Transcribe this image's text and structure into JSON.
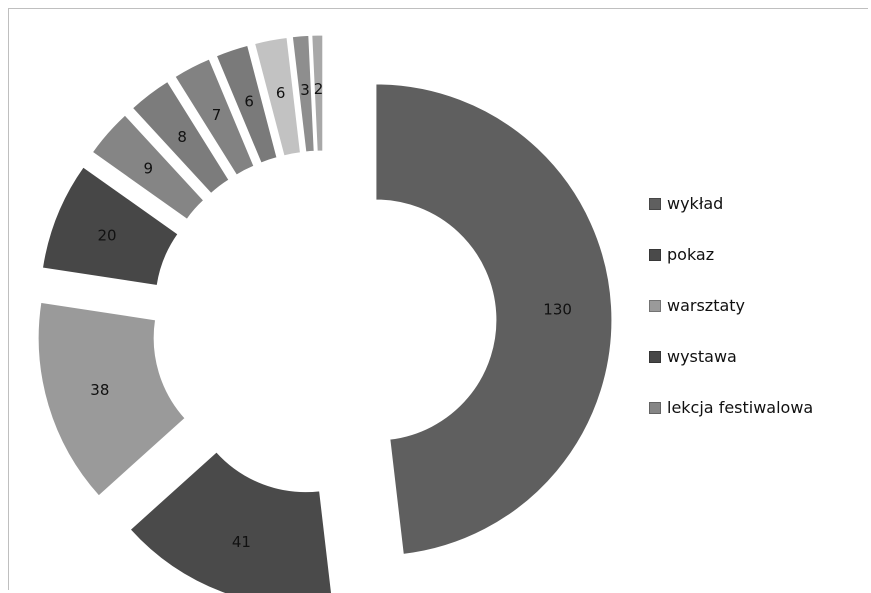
{
  "chart_data": {
    "type": "pie",
    "style": "exploded-doughnut",
    "title": "",
    "values": [
      130,
      41,
      38,
      20,
      9,
      8,
      7,
      6,
      6,
      3,
      2
    ],
    "labels": [
      "130",
      "41",
      "38",
      "20",
      "9",
      "8",
      "7",
      "6",
      "6",
      "3",
      "2"
    ],
    "colors": [
      "#5f5f5f",
      "#4a4a4a",
      "#9a9a9a",
      "#474747",
      "#858585",
      "#7c7c7c",
      "#828282",
      "#7a7a7a",
      "#c2c2c2",
      "#8e8e8e",
      "#a8a8a8"
    ],
    "legend_position": "right",
    "legend": [
      {
        "label": "wykład",
        "color": "#5f5f5f"
      },
      {
        "label": "pokaz",
        "color": "#4a4a4a"
      },
      {
        "label": "warsztaty",
        "color": "#9a9a9a"
      },
      {
        "label": "wystawa",
        "color": "#474747"
      },
      {
        "label": "lekcja festiwalowa",
        "color": "#858585"
      }
    ]
  }
}
